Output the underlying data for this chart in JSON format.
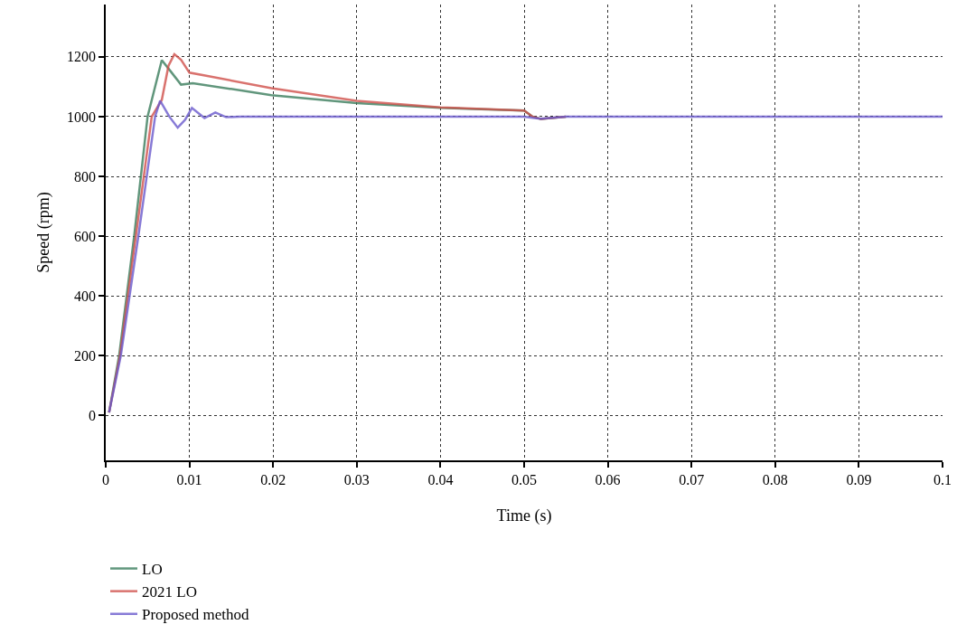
{
  "chart_data": {
    "type": "line",
    "xlabel": "Time (s)",
    "ylabel": "Speed (rpm)",
    "xlim": [
      0,
      0.1
    ],
    "xticks": [
      0,
      0.01,
      0.02,
      0.03,
      0.04,
      0.05,
      0.06,
      0.07,
      0.08,
      0.09,
      0.1
    ],
    "ylim": [
      -150,
      1375
    ],
    "yticks": [
      0,
      200,
      400,
      600,
      800,
      1000,
      1200
    ],
    "grid": true,
    "legend": "bottom left",
    "marker": "none",
    "line_style": "solid",
    "series": [
      {
        "name": "LO",
        "color": "#3a7d5c",
        "x": [
          0.0004,
          0.0016,
          0.0034,
          0.005,
          0.0067,
          0.0078,
          0.009,
          0.0104,
          0.0198,
          0.03,
          0.04,
          0.05,
          0.051,
          0.052,
          0.055
        ],
        "values": [
          10,
          200,
          600,
          1000,
          1189,
          1150,
          1107,
          1112,
          1072,
          1045,
          1029,
          1020,
          1000,
          992,
          1000
        ]
      },
      {
        "name": "2021 LO",
        "color": "#d0504a",
        "x": [
          0.0004,
          0.0017,
          0.0036,
          0.0055,
          0.0067,
          0.0075,
          0.0082,
          0.009,
          0.01,
          0.0123,
          0.0198,
          0.03,
          0.04,
          0.05,
          0.051,
          0.052,
          0.055
        ],
        "values": [
          10,
          200,
          600,
          1000,
          1056,
          1170,
          1209,
          1190,
          1147,
          1135,
          1095,
          1053,
          1031,
          1020,
          1000,
          992,
          1000
        ]
      },
      {
        "name": "Proposed method",
        "color": "#6a5acd",
        "x": [
          0.0004,
          0.0018,
          0.0039,
          0.0059,
          0.0065,
          0.0076,
          0.0086,
          0.0095,
          0.0103,
          0.0118,
          0.0131,
          0.0144,
          0.016,
          0.05,
          0.051,
          0.052,
          0.055,
          0.1
        ],
        "values": [
          10,
          200,
          600,
          1000,
          1053,
          1000,
          963,
          990,
          1029,
          995,
          1014,
          998,
          1000,
          1000,
          996,
          993,
          1000,
          1000
        ]
      }
    ]
  }
}
